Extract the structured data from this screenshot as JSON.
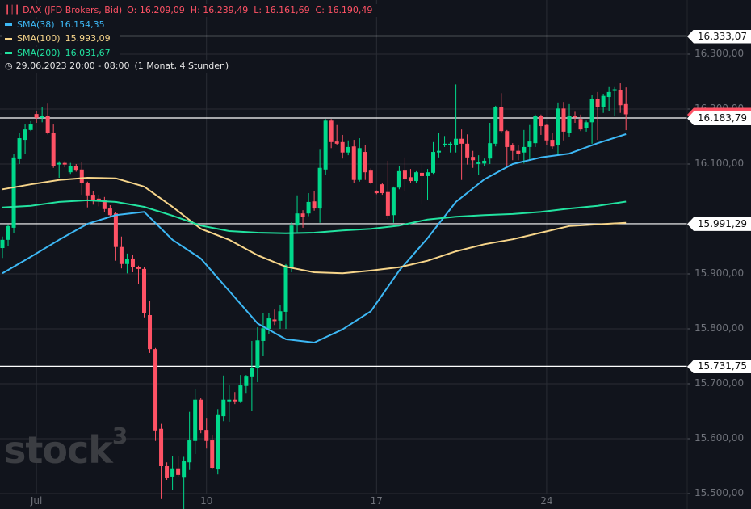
{
  "legend": {
    "instrument": "DAX (JFD Brokers, Bid)",
    "ohlc": "O: 16.209,09  H: 16.239,49  L: 16.161,69  C: 16.190,49",
    "sma38": {
      "label": "SMA(38)",
      "value": "16.154,35",
      "color": "#3db8f5"
    },
    "sma100": {
      "label": "SMA(100)",
      "value": "15.993,09",
      "color": "#f7d58a"
    },
    "sma200": {
      "label": "SMA(200)",
      "value": "16.031,67",
      "color": "#22e3a0"
    },
    "range": "29.06.2023 20:00 - 08:00",
    "interval": "(1 Monat, 4 Stunden)",
    "instrument_color": "#ff5265"
  },
  "watermark": "stock3",
  "chart_data": {
    "type": "candlestick",
    "title": "DAX (JFD Brokers, Bid)",
    "ylim": [
      15480,
      16390
    ],
    "grid": true,
    "y_ticks": [
      {
        "value": 16300,
        "label": "16.300,00"
      },
      {
        "value": 16200,
        "label": "16.200,00"
      },
      {
        "value": 16100,
        "label": "16.100,00"
      },
      {
        "value": 15900,
        "label": "15.900,00"
      },
      {
        "value": 15800,
        "label": "15.800,00"
      },
      {
        "value": 15700,
        "label": "15.700,00"
      },
      {
        "value": 15600,
        "label": "15.600,00"
      },
      {
        "value": 15500,
        "label": "15.500,00"
      }
    ],
    "x_ticks": [
      {
        "candle": 6,
        "label": "Jul"
      },
      {
        "candle": 36,
        "label": "10"
      },
      {
        "candle": 66,
        "label": "17"
      },
      {
        "candle": 96,
        "label": "24"
      }
    ],
    "horizontal_lines": [
      {
        "value": 16333.07,
        "label": "16.333,07"
      },
      {
        "value": 16183.79,
        "label": "16.183,79"
      },
      {
        "value": 15991.29,
        "label": "15.991,29"
      },
      {
        "value": 15731.75,
        "label": "15.731,75"
      }
    ],
    "last_price": {
      "value": 16190.49,
      "color": "#ff5265"
    },
    "colors": {
      "up": "#00d98b",
      "down": "#ff5265"
    },
    "candles_ohlc": [
      [
        15947,
        15968,
        15929,
        15962
      ],
      [
        15962,
        15990,
        15950,
        15987
      ],
      [
        15984,
        16118,
        15974,
        16112
      ],
      [
        16109,
        16157,
        16100,
        16147
      ],
      [
        16144,
        16172,
        16119,
        16163
      ],
      [
        16162,
        16178,
        16160,
        16172
      ],
      [
        16191,
        16196,
        16175,
        16184
      ],
      [
        16185,
        16203,
        16176,
        16187
      ],
      [
        16187,
        16210,
        16154,
        16156
      ],
      [
        16157,
        16172,
        16093,
        16097
      ],
      [
        16100,
        16105,
        16075,
        16102
      ],
      [
        16102,
        16105,
        16094,
        16099
      ],
      [
        16085,
        16102,
        16082,
        16097
      ],
      [
        16097,
        16100,
        16086,
        16088
      ],
      [
        16090,
        16104,
        16044,
        16065
      ],
      [
        16066,
        16068,
        16021,
        16043
      ],
      [
        16044,
        16050,
        16026,
        16035
      ],
      [
        16037,
        16044,
        16023,
        16032
      ],
      [
        16034,
        16040,
        16012,
        16018
      ],
      [
        16019,
        16025,
        16003,
        16007
      ],
      [
        16010,
        16012,
        15924,
        15949
      ],
      [
        15949,
        15968,
        15910,
        15918
      ],
      [
        15918,
        15937,
        15901,
        15927
      ],
      [
        15928,
        15934,
        15903,
        15912
      ],
      [
        15912,
        15915,
        15882,
        15909
      ],
      [
        15909,
        15912,
        15821,
        15828
      ],
      [
        15825,
        15851,
        15756,
        15763
      ],
      [
        15763,
        15765,
        15596,
        15615
      ],
      [
        15618,
        15627,
        15490,
        15550
      ],
      [
        15550,
        15557,
        15525,
        15528
      ],
      [
        15531,
        15568,
        15506,
        15546
      ],
      [
        15546,
        15568,
        15531,
        15534
      ],
      [
        15529,
        15567,
        15472,
        15560
      ],
      [
        15557,
        15649,
        15543,
        15597
      ],
      [
        15596,
        15690,
        15572,
        15671
      ],
      [
        15671,
        15675,
        15610,
        15616
      ],
      [
        15616,
        15638,
        15582,
        15596
      ],
      [
        15597,
        15607,
        15544,
        15547
      ],
      [
        15544,
        15654,
        15535,
        15643
      ],
      [
        15641,
        15715,
        15632,
        15671
      ],
      [
        15669,
        15697,
        15631,
        15671
      ],
      [
        15671,
        15685,
        15663,
        15669
      ],
      [
        15668,
        15716,
        15665,
        15697
      ],
      [
        15696,
        15716,
        15682,
        15713
      ],
      [
        15712,
        15778,
        15650,
        15729
      ],
      [
        15728,
        15803,
        15703,
        15779
      ],
      [
        15778,
        15828,
        15750,
        15801
      ],
      [
        15800,
        15828,
        15790,
        15819
      ],
      [
        15817,
        15835,
        15807,
        15815
      ],
      [
        15815,
        15843,
        15800,
        15832
      ],
      [
        15831,
        15918,
        15800,
        15916
      ],
      [
        15913,
        15994,
        15903,
        15988
      ],
      [
        15988,
        16043,
        15976,
        16010
      ],
      [
        16010,
        16016,
        15984,
        16003
      ],
      [
        16010,
        16047,
        16005,
        16031
      ],
      [
        16032,
        16050,
        16015,
        16019
      ],
      [
        16019,
        16126,
        15993,
        16093
      ],
      [
        16090,
        16182,
        16080,
        16179
      ],
      [
        16179,
        16182,
        16129,
        16140
      ],
      [
        16141,
        16171,
        16135,
        16137
      ],
      [
        16140,
        16153,
        16110,
        16121
      ],
      [
        16121,
        16143,
        16116,
        16131
      ],
      [
        16132,
        16144,
        16065,
        16071
      ],
      [
        16071,
        16147,
        16068,
        16129
      ],
      [
        16122,
        16134,
        16071,
        16085
      ],
      [
        16088,
        16092,
        16063,
        16066
      ],
      [
        16050,
        16052,
        16045,
        16047
      ],
      [
        16063,
        16065,
        16044,
        16047
      ],
      [
        16049,
        16106,
        16000,
        16006
      ],
      [
        16007,
        16059,
        15993,
        16057
      ],
      [
        16057,
        16097,
        16054,
        16087
      ],
      [
        16088,
        16112,
        16051,
        16072
      ],
      [
        16076,
        16091,
        16065,
        16069
      ],
      [
        16069,
        16087,
        16065,
        16085
      ],
      [
        16084,
        16100,
        16026,
        16078
      ],
      [
        16078,
        16091,
        16034,
        16085
      ],
      [
        16084,
        16140,
        16082,
        16122
      ],
      [
        16122,
        16156,
        16112,
        16124
      ],
      [
        16134,
        16151,
        16131,
        16137
      ],
      [
        16136,
        16140,
        16121,
        16137
      ],
      [
        16134,
        16245,
        16121,
        16146
      ],
      [
        16146,
        16163,
        16071,
        16137
      ],
      [
        16137,
        16154,
        16099,
        16112
      ],
      [
        16113,
        16124,
        16093,
        16107
      ],
      [
        16101,
        16116,
        16080,
        16103
      ],
      [
        16101,
        16110,
        16097,
        16106
      ],
      [
        16110,
        16175,
        16100,
        16138
      ],
      [
        16137,
        16206,
        16132,
        16204
      ],
      [
        16204,
        16229,
        16156,
        16160
      ],
      [
        16160,
        16162,
        16093,
        16131
      ],
      [
        16134,
        16138,
        16107,
        16124
      ],
      [
        16124,
        16135,
        16107,
        16119
      ],
      [
        16121,
        16162,
        16101,
        16131
      ],
      [
        16131,
        16171,
        16107,
        16141
      ],
      [
        16138,
        16190,
        16131,
        16187
      ],
      [
        16187,
        16190,
        16153,
        16169
      ],
      [
        16171,
        16172,
        16135,
        16143
      ],
      [
        16144,
        16157,
        16128,
        16132
      ],
      [
        16134,
        16212,
        16116,
        16201
      ],
      [
        16201,
        16213,
        16143,
        16159
      ],
      [
        16157,
        16209,
        16150,
        16187
      ],
      [
        16188,
        16195,
        16175,
        16185
      ],
      [
        16182,
        16190,
        16160,
        16163
      ],
      [
        16165,
        16179,
        16159,
        16176
      ],
      [
        16176,
        16226,
        16137,
        16219
      ],
      [
        16219,
        16231,
        16144,
        16203
      ],
      [
        16203,
        16228,
        16193,
        16224
      ],
      [
        16222,
        16240,
        16196,
        16231
      ],
      [
        16234,
        16240,
        16188,
        16236
      ],
      [
        16235,
        16247,
        16193,
        16207
      ],
      [
        16209.09,
        16239.49,
        16161.69,
        16190.49
      ]
    ],
    "series": [
      {
        "name": "SMA(38)",
        "color": "#3db8f5",
        "every_nth_candle": 5,
        "values": [
          15901,
          15931,
          15962,
          15991,
          16007,
          16013,
          15962,
          15928,
          15869,
          15810,
          15781,
          15775,
          15799,
          15832,
          15906,
          15965,
          16031,
          16072,
          16100,
          16112,
          16119,
          16138,
          16154.35
        ]
      },
      {
        "name": "SMA(100)",
        "color": "#f7d58a",
        "every_nth_candle": 5,
        "values": [
          16054,
          16063,
          16071,
          16075,
          16074,
          16059,
          16022,
          15982,
          15962,
          15934,
          15913,
          15903,
          15901,
          15906,
          15912,
          15924,
          15941,
          15954,
          15963,
          15975,
          15987,
          15990,
          15993.09
        ]
      },
      {
        "name": "SMA(200)",
        "color": "#22e3a0",
        "every_nth_candle": 5,
        "values": [
          16021,
          16024,
          16031,
          16034,
          16031,
          16022,
          16006,
          15988,
          15978,
          15975,
          15974,
          15975,
          15979,
          15982,
          15988,
          15999,
          16004,
          16007,
          16009,
          16013,
          16019,
          16024,
          16031.67
        ]
      }
    ]
  }
}
